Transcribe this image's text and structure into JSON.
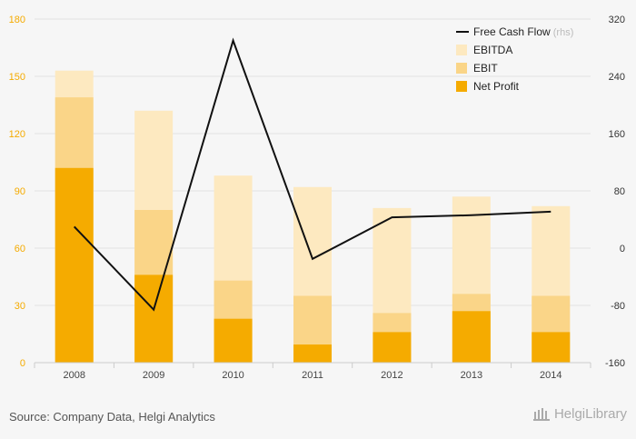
{
  "chart_data": {
    "type": "bar",
    "categories": [
      "2008",
      "2009",
      "2010",
      "2011",
      "2012",
      "2013",
      "2014"
    ],
    "series": [
      {
        "name": "Net Profit",
        "kind": "bar",
        "values": [
          102,
          46,
          23,
          9.5,
          16,
          27,
          16
        ]
      },
      {
        "name": "EBIT",
        "kind": "bar",
        "values": [
          139,
          80,
          43,
          35,
          26,
          36,
          35
        ]
      },
      {
        "name": "EBITDA",
        "kind": "bar",
        "values": [
          153,
          132,
          98,
          92,
          81,
          87,
          82
        ]
      },
      {
        "name": "Free Cash Flow",
        "kind": "line",
        "axis": "right",
        "values": [
          30,
          -86,
          290,
          -15,
          43,
          46,
          51
        ]
      }
    ],
    "left_axis": {
      "ticks": [
        "0",
        "30",
        "60",
        "90",
        "120",
        "150",
        "180"
      ],
      "range": [
        0,
        180
      ]
    },
    "right_axis": {
      "ticks": [
        "-160",
        "-80",
        "0",
        "80",
        "160",
        "240",
        "320"
      ],
      "range": [
        -160,
        320
      ]
    },
    "legend": {
      "position": "top-right",
      "items": [
        {
          "label": "Free Cash Flow",
          "suffix": "(rhs)",
          "type": "line"
        },
        {
          "label": "EBITDA",
          "type": "bar"
        },
        {
          "label": "EBIT",
          "type": "bar"
        },
        {
          "label": "Net Profit",
          "type": "bar"
        }
      ]
    },
    "colors": {
      "net_profit": "#f5ab00",
      "ebit": "#fad588",
      "ebitda": "#fde9c0",
      "line": "#111111",
      "left_ticks": "#f5ab00",
      "right_ticks": "#333333",
      "grid": "#e2e2e2"
    },
    "grid": true
  },
  "footer": {
    "source": "Source: Company Data, Helgi Analytics",
    "logo_text": "HelgiLibrary"
  }
}
